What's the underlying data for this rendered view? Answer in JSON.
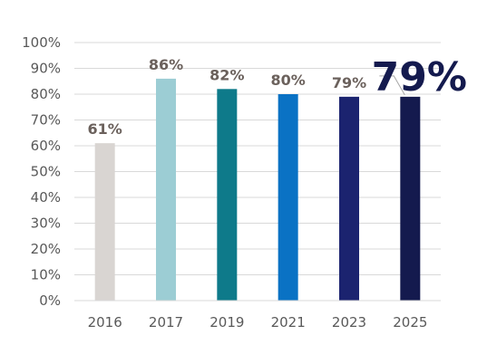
{
  "chart_data": {
    "type": "bar",
    "categories": [
      "2016",
      "2017",
      "2019",
      "2021",
      "2023",
      "2025"
    ],
    "values": [
      61,
      86,
      82,
      80,
      79,
      79
    ],
    "data_labels": [
      "61%",
      "86%",
      "82%",
      "80%",
      "79%",
      ""
    ],
    "bar_colors": [
      "#d9d5d2",
      "#9ccdd4",
      "#0e7a8a",
      "#0a72c4",
      "#1b236f",
      "#141a4e"
    ],
    "ylim": [
      0,
      100
    ],
    "yticks": [
      "0%",
      "10%",
      "20%",
      "30%",
      "40%",
      "50%",
      "60%",
      "70%",
      "80%",
      "90%",
      "100%"
    ],
    "grid": true,
    "callout": {
      "category": "2025",
      "text": "79%",
      "color": "#141a4e"
    }
  }
}
